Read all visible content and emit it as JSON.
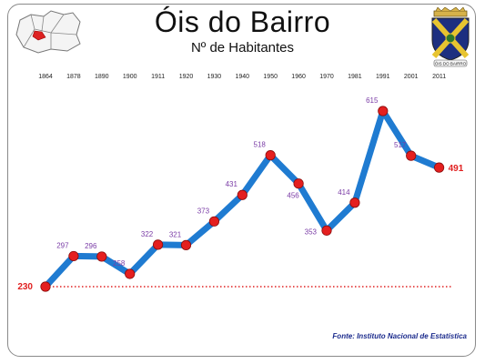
{
  "header": {
    "title": "Óis do Bairro",
    "subtitle": "Nº de Habitantes"
  },
  "crest": {
    "caption": "ÓIS DO BAIRRO"
  },
  "source": "Fonte: Instituto Nacional de Estatística",
  "colors": {
    "line": "#1f7bd1",
    "marker": "#e41f1f",
    "labels": "#7a3ca6",
    "edge_labels": "#e02020",
    "reference": "#e02020"
  },
  "chart_data": {
    "type": "line",
    "title": "Óis do Bairro",
    "subtitle": "Nº de Habitantes",
    "x": [
      "1864",
      "1878",
      "1890",
      "1900",
      "1911",
      "1920",
      "1930",
      "1940",
      "1950",
      "1960",
      "1970",
      "1981",
      "1991",
      "2001",
      "2011"
    ],
    "series": [
      {
        "values": [
          230,
          297,
          296,
          258,
          322,
          321,
          373,
          431,
          518,
          456,
          353,
          414,
          615,
          517,
          491
        ]
      }
    ],
    "reference_line": {
      "value": 230,
      "style": "dotted"
    },
    "ylim": [
      230,
      615
    ],
    "grid": false
  }
}
